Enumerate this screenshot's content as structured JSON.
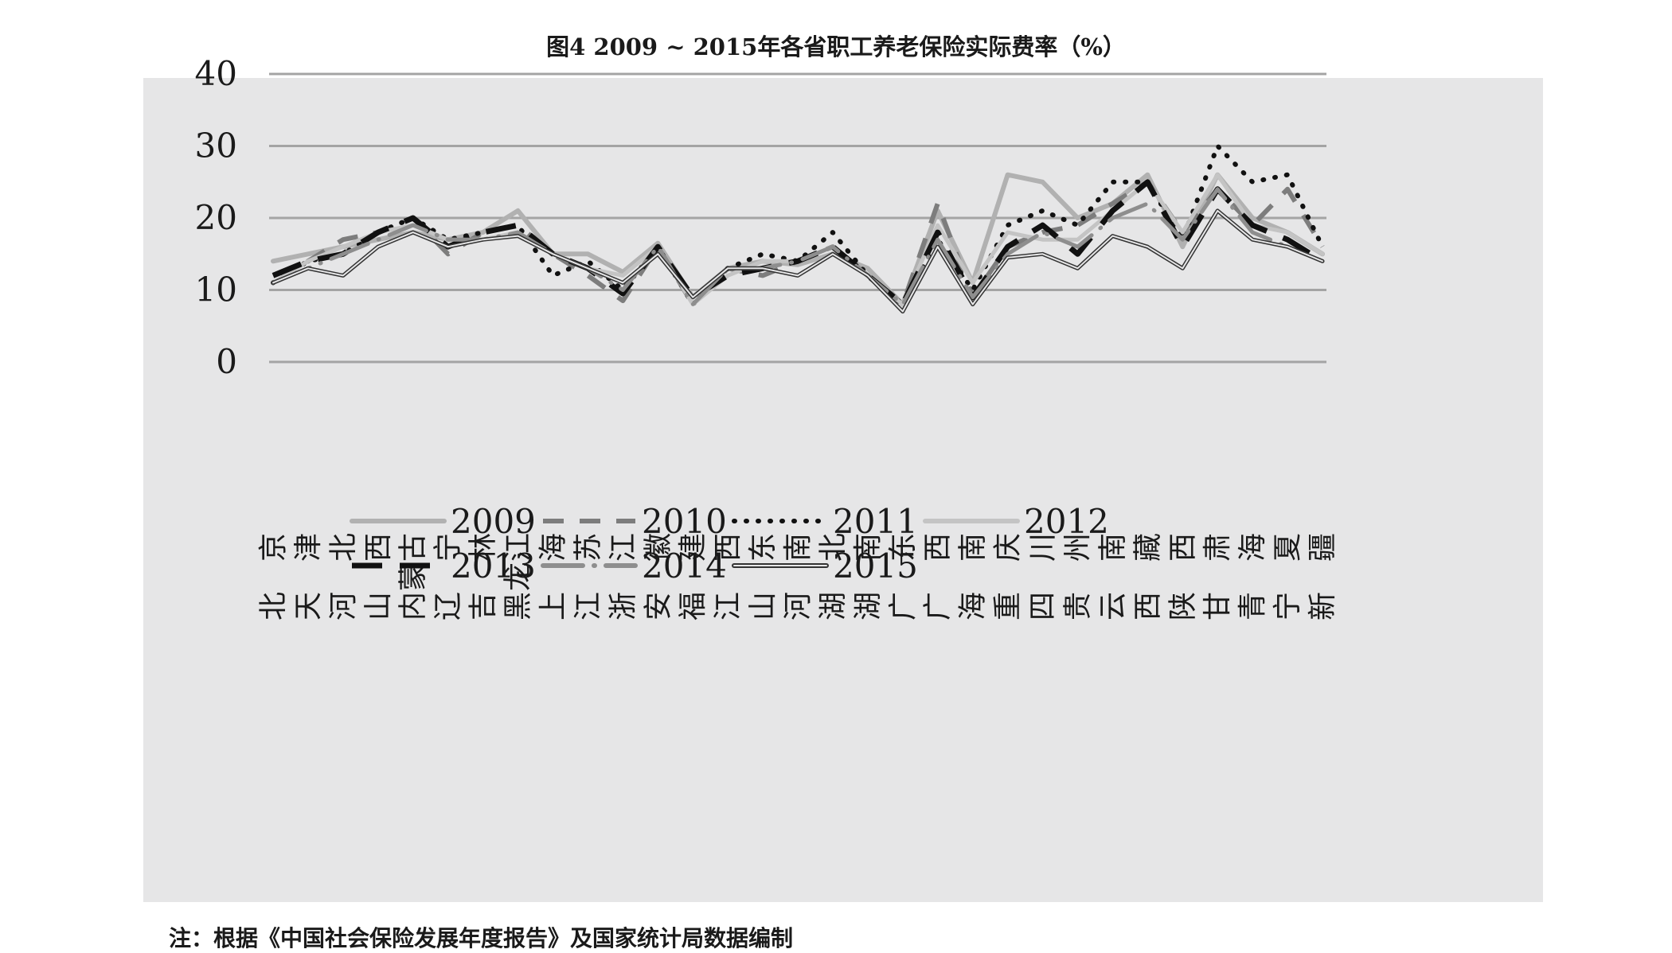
{
  "title": "图4  2009 ~ 2015年各省职工养老保险实际费率（%）",
  "note": "注：根据《中国社会保险发展年度报告》及国家统计局数据编制",
  "chart_data": {
    "type": "line",
    "title": "图4  2009 ~ 2015年各省职工养老保险实际费率（%）",
    "xlabel": "",
    "ylabel": "",
    "ylim": [
      0,
      40
    ],
    "yticks": [
      "0",
      "10",
      "20",
      "30",
      "40"
    ],
    "grid": true,
    "legend_position": "bottom",
    "categories": [
      "北京",
      "天津",
      "河北",
      "山西",
      "内蒙古",
      "辽宁",
      "吉林",
      "黑龙江",
      "上海",
      "江苏",
      "浙江",
      "安徽",
      "福建",
      "江西",
      "山东",
      "河南",
      "湖北",
      "湖南",
      "广东",
      "广西",
      "海南",
      "重庆",
      "四川",
      "贵州",
      "云南",
      "西藏",
      "陕西",
      "甘肃",
      "青海",
      "宁夏",
      "新疆"
    ],
    "series": [
      {
        "name": "2009",
        "values": [
          14,
          15,
          16,
          17,
          18,
          17,
          18,
          21,
          15,
          15,
          12.5,
          16.5,
          9,
          13,
          14,
          13.5,
          15,
          13,
          8,
          21,
          11,
          26,
          25,
          20,
          22,
          26,
          16,
          26,
          20,
          18,
          15
        ]
      },
      {
        "name": "2010",
        "values": [
          12,
          14,
          17,
          18,
          20,
          15,
          18,
          19,
          15,
          12,
          8.5,
          16,
          8,
          13,
          12,
          14,
          16,
          12,
          8,
          22,
          9,
          16,
          18,
          19,
          22,
          25,
          18,
          24,
          19,
          24,
          16
        ]
      },
      {
        "name": "2011",
        "values": [
          11,
          14,
          15,
          18,
          20,
          17,
          18,
          19,
          12,
          14,
          10,
          16,
          8,
          13,
          15,
          14,
          18,
          12,
          8,
          17,
          10,
          19,
          21,
          19,
          25,
          25,
          17,
          30,
          25,
          26,
          16
        ]
      },
      {
        "name": "2012",
        "values": [
          11,
          14,
          16,
          18,
          19,
          17,
          17,
          18,
          15,
          13,
          12,
          16,
          8,
          12,
          14,
          14,
          16,
          12,
          8,
          19,
          11,
          18,
          17,
          17,
          21,
          25,
          18,
          26,
          19,
          18,
          15
        ]
      },
      {
        "name": "2013",
        "values": [
          12,
          14,
          15,
          18,
          20,
          16,
          18,
          19,
          15,
          13,
          9.5,
          16,
          9,
          12,
          13,
          14,
          16,
          12,
          8,
          18,
          9,
          16,
          19,
          15,
          21,
          25,
          16,
          24,
          19,
          17,
          14
        ]
      },
      {
        "name": "2014",
        "values": [
          11,
          13,
          15,
          17,
          19,
          17,
          17,
          18,
          15,
          13,
          10,
          16,
          8,
          13,
          13,
          14,
          16,
          12,
          8,
          17,
          9,
          15,
          18,
          16,
          20,
          22,
          17,
          24,
          18,
          16,
          14
        ]
      },
      {
        "name": "2015",
        "values": [
          11,
          13,
          12,
          16,
          18,
          16,
          17,
          17.5,
          15,
          13,
          11,
          15,
          9,
          13,
          13,
          12,
          15,
          12,
          7,
          16,
          8,
          14.5,
          15,
          13,
          17.5,
          16,
          13,
          21,
          17,
          16,
          14
        ]
      }
    ],
    "series_style": [
      {
        "color": "#b1b1b1",
        "width": 6,
        "dash": "",
        "cap": "round"
      },
      {
        "color": "#7d7d7d",
        "width": 6,
        "dash": "26 20",
        "cap": "butt"
      },
      {
        "color": "#111111",
        "width": 6,
        "dash": "1 14",
        "cap": "round"
      },
      {
        "color": "#c4c4c4",
        "width": 5,
        "dash": "",
        "cap": "round"
      },
      {
        "color": "#111111",
        "width": 7,
        "dash": "38 22",
        "cap": "butt"
      },
      {
        "color": "#8e8e8e",
        "width": 5,
        "dash": "50 14 1 14",
        "cap": "round"
      },
      {
        "color": "#333333",
        "width": 5,
        "dash": "",
        "cap": "round",
        "double": true
      }
    ]
  }
}
